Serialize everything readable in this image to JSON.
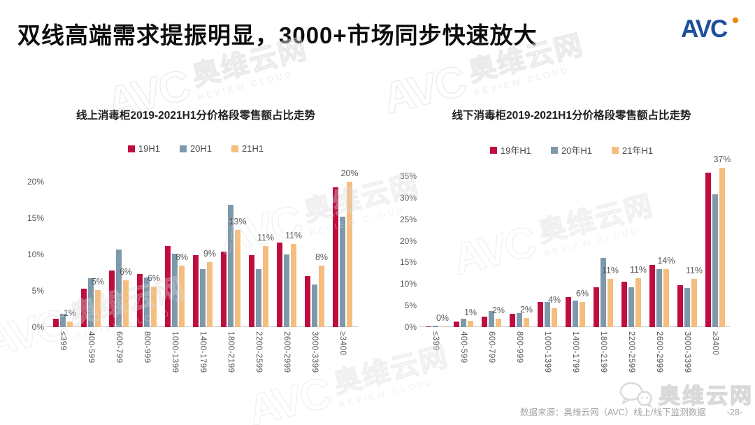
{
  "slide": {
    "title": "双线高端需求提振明显，3000+市场同步快速放大",
    "logo_text": "AVC",
    "footer": {
      "source": "数据来源：奥维云网（AVC）线上/线下监测数据",
      "page": "-28-"
    },
    "watermark": {
      "avc": "AVC",
      "cn": "奥维云网",
      "latin": "REVIEW CLOUD"
    }
  },
  "colors": {
    "series_19h1": "#be0d3e",
    "series_20h1": "#7e99ac",
    "series_21h1": "#f5be7e",
    "logo_blue": "#1d4f9e",
    "logo_orange": "#f08300",
    "axis_text": "#595959",
    "watermark_gray": "#dadada"
  },
  "chart_data": [
    {
      "type": "bar",
      "title": "线上消毒柜2019-2021H1分价格段零售额占比走势",
      "categories": [
        "≤399",
        "400-599",
        "600-799",
        "800-999",
        "1000-1399",
        "1400-1799",
        "1800-2199",
        "2200-2599",
        "2600-2999",
        "3000-3399",
        "≥3400"
      ],
      "series": [
        {
          "name": "19H1",
          "color": "#be0d3e",
          "values": [
            1.2,
            5.3,
            7.8,
            7.3,
            11.2,
            9.9,
            10.4,
            9.9,
            11.6,
            7.0,
            19.2
          ]
        },
        {
          "name": "20H1",
          "color": "#7e99ac",
          "values": [
            1.8,
            6.7,
            10.7,
            6.8,
            10.1,
            8.0,
            16.8,
            8.0,
            10.0,
            5.9,
            15.2
          ]
        },
        {
          "name": "21H1",
          "color": "#f5be7e",
          "values": [
            0.8,
            5.1,
            6.4,
            5.6,
            8.5,
            8.9,
            13.4,
            11.2,
            11.4,
            8.5,
            20.0
          ]
        }
      ],
      "data_labels": [
        "1%",
        "5%",
        "6%",
        "6%",
        "8%",
        "9%",
        "13%",
        "11%",
        "11%",
        "8%",
        "20%"
      ],
      "data_label_series": "21H1",
      "ylabel": "",
      "xlabel": "",
      "ylim": [
        0,
        20
      ],
      "yticks": [
        "0%",
        "5%",
        "10%",
        "15%",
        "20%"
      ],
      "grid": false,
      "legend_position": "top"
    },
    {
      "type": "bar",
      "title": "线下消毒柜2019-2021H1分价格段零售额占比走势",
      "categories": [
        "≤399",
        "400-599",
        "600-799",
        "800-999",
        "1000-1399",
        "1400-1799",
        "1800-2199",
        "2200-2599",
        "2600-2999",
        "3000-3399",
        "≥3400"
      ],
      "series": [
        {
          "name": "19年H1",
          "color": "#be0d3e",
          "values": [
            0.2,
            1.3,
            2.4,
            3.1,
            5.9,
            6.9,
            9.2,
            10.6,
            14.5,
            9.7,
            35.8
          ]
        },
        {
          "name": "20年H1",
          "color": "#7e99ac",
          "values": [
            0.3,
            1.9,
            3.8,
            3.2,
            5.9,
            6.1,
            16.1,
            9.2,
            13.4,
            9.1,
            30.8
          ]
        },
        {
          "name": "21年H1",
          "color": "#f5be7e",
          "values": [
            0.1,
            1.4,
            1.9,
            2.1,
            4.4,
            5.9,
            11.2,
            11.4,
            13.5,
            11.2,
            36.9
          ]
        }
      ],
      "data_labels": [
        "0%",
        "1%",
        "2%",
        "2%",
        "4%",
        "6%",
        "11%",
        "11%",
        "14%",
        "11%",
        "37%"
      ],
      "data_label_series": "21年H1",
      "ylabel": "",
      "xlabel": "",
      "ylim": [
        0,
        35
      ],
      "yticks": [
        "0%",
        "5%",
        "10%",
        "15%",
        "20%",
        "25%",
        "30%",
        "35%"
      ],
      "grid": false,
      "legend_position": "top"
    }
  ]
}
